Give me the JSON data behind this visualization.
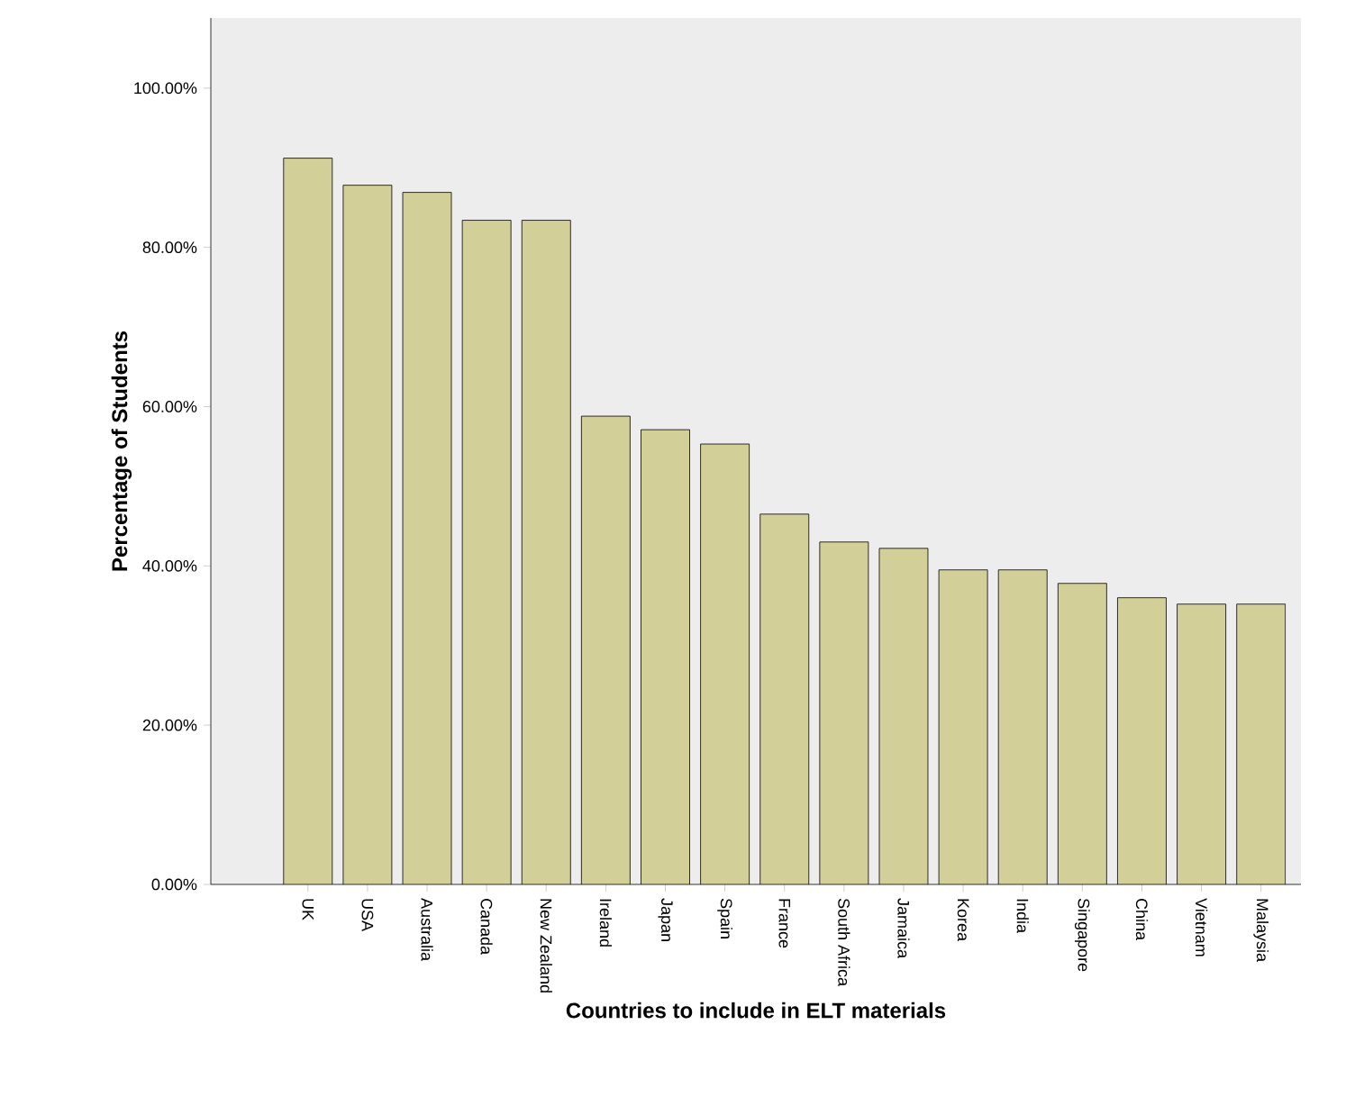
{
  "chart_data": {
    "type": "bar",
    "xlabel": "Countries to include in ELT materials",
    "ylabel": "Percentage of Students",
    "categories": [
      "UK",
      "USA",
      "Australia",
      "Canada",
      "New Zealand",
      "Ireland",
      "Japan",
      "Spain",
      "France",
      "South Africa",
      "Jamaica",
      "Korea",
      "India",
      "Singapore",
      "China",
      "Vietnam",
      "Malaysia"
    ],
    "values": [
      91.2,
      87.8,
      86.9,
      83.4,
      83.4,
      58.8,
      57.1,
      55.3,
      46.5,
      43.0,
      42.2,
      39.5,
      39.5,
      37.8,
      36.0,
      35.2,
      35.2
    ],
    "color": "#d3cf98",
    "ylim": [
      0,
      108.8
    ],
    "yticks": [
      {
        "value": 0,
        "label": "0.00%"
      },
      {
        "value": 20,
        "label": "20.00%"
      },
      {
        "value": 40,
        "label": "40.00%"
      },
      {
        "value": 60,
        "label": "60.00%"
      },
      {
        "value": 80,
        "label": "80.00%"
      },
      {
        "value": 100,
        "label": "100.00%"
      }
    ],
    "grid": false
  }
}
